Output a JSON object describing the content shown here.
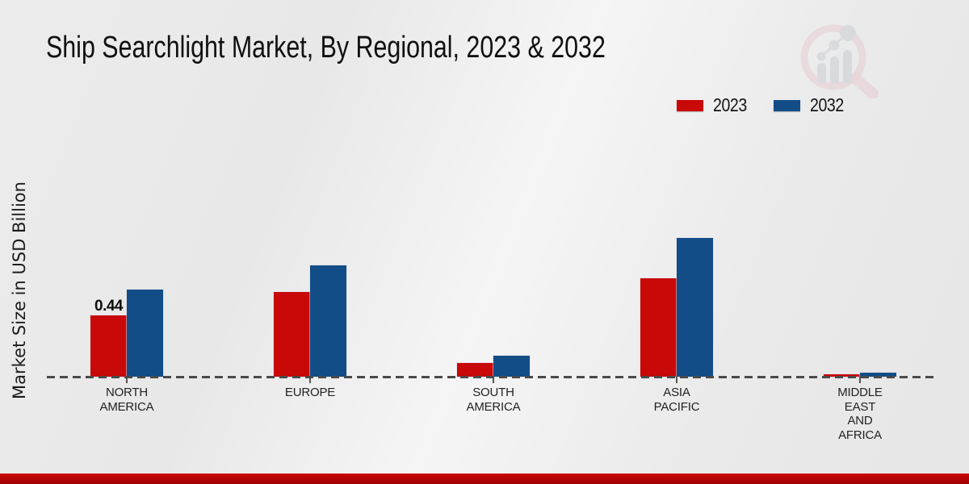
{
  "title": "Ship Searchlight Market, By Regional, 2023 & 2032",
  "watermark": {
    "icon": "magnifier-growth-chart-logo",
    "ring_color": "#e3c3cb",
    "bars_color": "#c9cdd4"
  },
  "footer": {
    "accent_bar_color": "#b50404"
  },
  "chart_data": {
    "type": "bar",
    "title": "Ship Searchlight Market, By Regional, 2023 & 2032",
    "xlabel": "",
    "ylabel": "Market Size in USD Billion",
    "categories": [
      "North America",
      "Europe",
      "South America",
      "Asia Pacific",
      "Middle East and Africa"
    ],
    "category_label_lines": [
      [
        "NORTH",
        "AMERICA"
      ],
      [
        "EUROPE"
      ],
      [
        "SOUTH",
        "AMERICA"
      ],
      [
        "ASIA",
        "PACIFIC"
      ],
      [
        "MIDDLE",
        "EAST",
        "AND",
        "AFRICA"
      ]
    ],
    "series": [
      {
        "name": "2023",
        "color": "#c90808",
        "values": [
          0.44,
          0.61,
          0.1,
          0.71,
          0.02
        ]
      },
      {
        "name": "2032",
        "color": "#124d88",
        "values": [
          0.63,
          0.8,
          0.15,
          1.0,
          0.03
        ]
      }
    ],
    "ylim": [
      0,
      1.15
    ],
    "grid": false,
    "legend_position": "top-right",
    "baseline_style": "dashed",
    "annotations": [
      {
        "series": "2023",
        "category": "North America",
        "text": "0.44"
      }
    ]
  }
}
